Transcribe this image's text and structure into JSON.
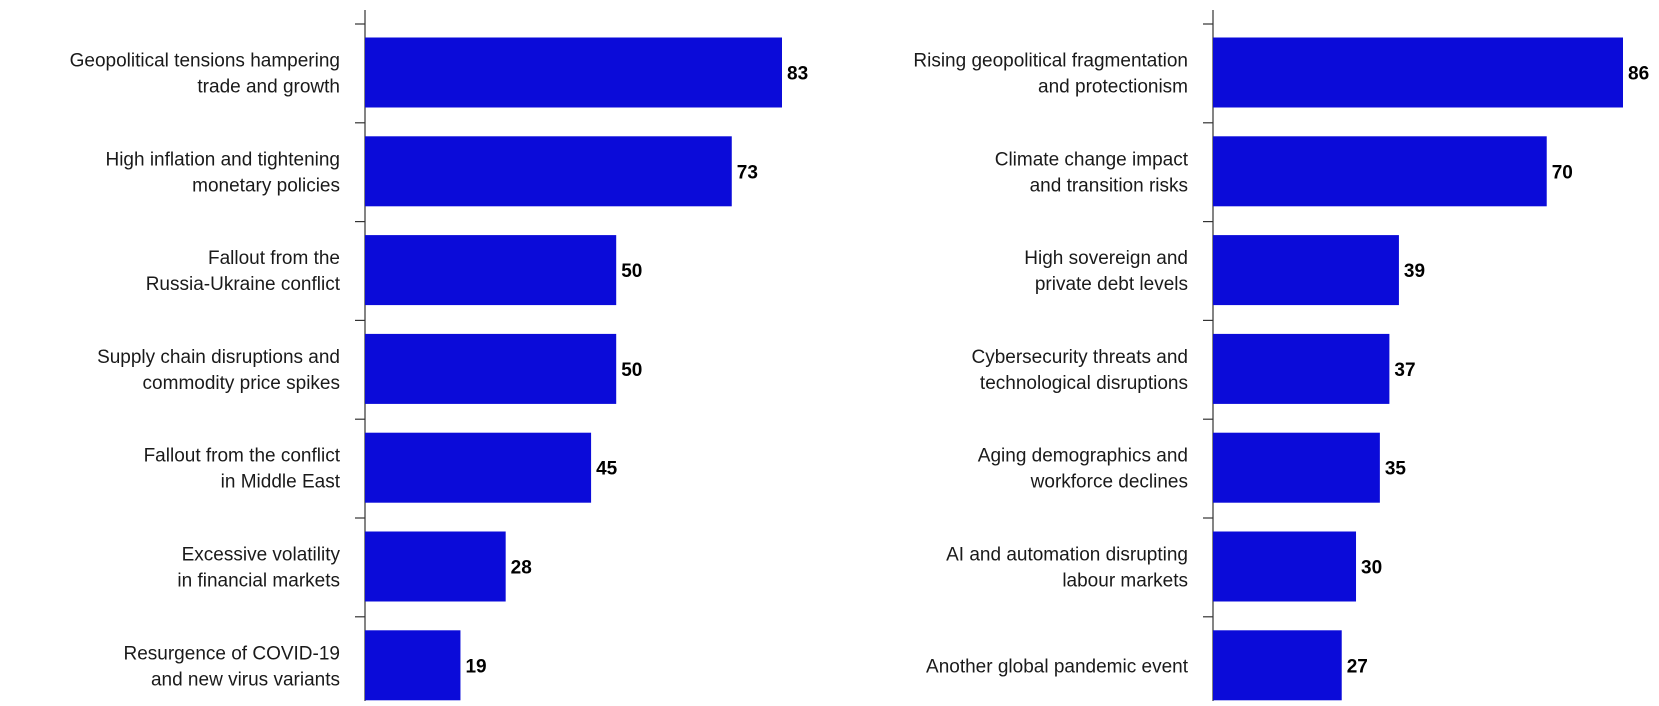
{
  "colors": {
    "bar": "#0b0bd9",
    "axis": "#333333",
    "text": "#1a1a1a",
    "value_text": "#000000"
  },
  "chart_data": [
    {
      "type": "bar",
      "orientation": "horizontal",
      "grid": false,
      "legend": "none",
      "xlim": [
        0,
        90
      ],
      "categories": [
        [
          "Geopolitical tensions hampering",
          "trade and growth"
        ],
        [
          "High inflation and tightening",
          "monetary policies"
        ],
        [
          "Fallout from the",
          "Russia-Ukraine conflict"
        ],
        [
          "Supply chain disruptions and",
          "commodity price spikes"
        ],
        [
          "Fallout from the conflict",
          "in Middle East"
        ],
        [
          "Excessive volatility",
          "in financial markets"
        ],
        [
          "Resurgence of COVID-19",
          "and new virus variants"
        ]
      ],
      "values": [
        83,
        73,
        50,
        50,
        45,
        28,
        19
      ],
      "data_labels": [
        "83",
        "73",
        "50",
        "50",
        "45",
        "28",
        "19"
      ]
    },
    {
      "type": "bar",
      "orientation": "horizontal",
      "grid": false,
      "legend": "none",
      "xlim": [
        0,
        90
      ],
      "categories": [
        [
          "Rising geopolitical fragmentation",
          "and protectionism"
        ],
        [
          "Climate change impact",
          "and transition risks"
        ],
        [
          "High sovereign and",
          "private debt levels"
        ],
        [
          "Cybersecurity threats and",
          "technological disruptions"
        ],
        [
          "Aging demographics and",
          "workforce declines"
        ],
        [
          "AI and automation disrupting",
          "labour markets"
        ],
        [
          "Another global pandemic event"
        ]
      ],
      "values": [
        86,
        70,
        39,
        37,
        35,
        30,
        27
      ],
      "data_labels": [
        "86",
        "70",
        "39",
        "37",
        "35",
        "30",
        "27"
      ]
    }
  ]
}
